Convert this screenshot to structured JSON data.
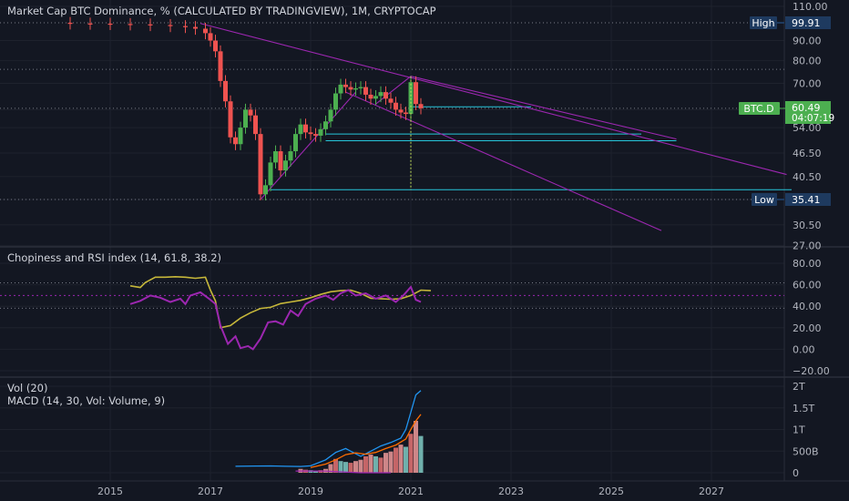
{
  "chart_title": "Market Cap BTC Dominance, % (CALCULATED BY TRADINGVIEW), 1M, CRYPTOCAP",
  "colors": {
    "background": "#131722",
    "up": "#26a69a",
    "up_green": "#4caf50",
    "down": "#ef5350",
    "trendline": "#9c27b0",
    "level": "#26c6da",
    "rsi": "#9c27b0",
    "chop": "#c6b73a",
    "macd": "#2196f3",
    "signal": "#ff6d00"
  },
  "price_panel": {
    "y_ticks": [
      "110.00",
      "90.00",
      "80.00",
      "70.00",
      "60.00",
      "54.00",
      "46.50",
      "40.50",
      "35.41",
      "30.50",
      "27.00"
    ],
    "high_label": "High",
    "high_value": "99.91",
    "low_label": "Low",
    "low_value": "35.41",
    "symbol_label": "BTC.D",
    "last_value": "60.49",
    "countdown": "04:07:19"
  },
  "chop_panel": {
    "title": "Chopiness and RSI index (14, 61.8, 38.2)",
    "y_ticks": [
      "80.00",
      "60.00",
      "40.00",
      "20.00",
      "0.00",
      "−20.00"
    ]
  },
  "vol_panel": {
    "title_vol": "Vol (20)",
    "title_macd": "MACD (14, 30, Vol: Volume, 9)",
    "y_ticks": [
      "2T",
      "1.5T",
      "1T",
      "500B",
      "0"
    ]
  },
  "x_ticks": [
    "2015",
    "2017",
    "2019",
    "2021",
    "2023",
    "2025",
    "2027"
  ],
  "chart_data": [
    {
      "type": "candlestick",
      "title": "Market Cap BTC Dominance, % (CALCULATED BY TRADINGVIEW), 1M, CRYPTOCAP",
      "x_range": [
        2013.9,
        2028.6
      ],
      "ylim": [
        26,
        111
      ],
      "close": [
        [
          2014.2,
          99.5
        ],
        [
          2014.6,
          99.4
        ],
        [
          2015.0,
          99.2
        ],
        [
          2015.4,
          99.0
        ],
        [
          2015.8,
          98.6
        ],
        [
          2016.2,
          98.0
        ],
        [
          2016.5,
          97.5
        ],
        [
          2016.7,
          96.5
        ],
        [
          2016.9,
          94.0
        ],
        [
          2017.0,
          90.0
        ],
        [
          2017.1,
          84.5
        ],
        [
          2017.2,
          71.0
        ],
        [
          2017.3,
          63.0
        ],
        [
          2017.4,
          51.0
        ],
        [
          2017.5,
          49.0
        ],
        [
          2017.6,
          54.0
        ],
        [
          2017.7,
          60.0
        ],
        [
          2017.8,
          58.0
        ],
        [
          2017.9,
          52.0
        ],
        [
          2018.0,
          36.5
        ],
        [
          2018.1,
          38.5
        ],
        [
          2018.2,
          44.0
        ],
        [
          2018.3,
          47.0
        ],
        [
          2018.4,
          42.0
        ],
        [
          2018.5,
          44.5
        ],
        [
          2018.6,
          47.0
        ],
        [
          2018.7,
          52.0
        ],
        [
          2018.8,
          55.0
        ],
        [
          2018.9,
          52.5
        ],
        [
          2019.0,
          52.0
        ],
        [
          2019.1,
          51.5
        ],
        [
          2019.2,
          53.5
        ],
        [
          2019.3,
          56.0
        ],
        [
          2019.4,
          60.0
        ],
        [
          2019.5,
          66.0
        ],
        [
          2019.6,
          69.5
        ],
        [
          2019.7,
          68.5
        ],
        [
          2019.8,
          67.5
        ],
        [
          2019.9,
          68.0
        ],
        [
          2020.0,
          68.5
        ],
        [
          2020.1,
          65.5
        ],
        [
          2020.2,
          64.0
        ],
        [
          2020.3,
          65.0
        ],
        [
          2020.4,
          66.5
        ],
        [
          2020.5,
          64.0
        ],
        [
          2020.6,
          62.5
        ],
        [
          2020.7,
          60.0
        ],
        [
          2020.8,
          59.0
        ],
        [
          2020.9,
          58.5
        ],
        [
          2021.0,
          70.5
        ],
        [
          2021.1,
          62.0
        ],
        [
          2021.2,
          60.5
        ]
      ],
      "high": 99.91,
      "low": 35.41,
      "last": 60.49,
      "trendlines": [
        {
          "from": [
            2016.8,
            99.5
          ],
          "to": [
            2028.5,
            41.0
          ]
        },
        {
          "from": [
            2018.0,
            35.41
          ],
          "to": [
            2019.9,
            66.5
          ]
        },
        {
          "from": [
            2019.7,
            66.5
          ],
          "to": [
            2026.0,
            29.5
          ]
        },
        {
          "from": [
            2020.3,
            62.0
          ],
          "to": [
            2021.0,
            73.0
          ]
        },
        {
          "from": [
            2021.0,
            73.0
          ],
          "to": [
            2026.3,
            50.5
          ]
        }
      ],
      "horizontal_levels": [
        {
          "y": 61.0,
          "from": 2021.0,
          "to": 2023.4
        },
        {
          "y": 52.0,
          "from": 2019.3,
          "to": 2025.6
        },
        {
          "y": 50.0,
          "from": 2019.3,
          "to": 2026.3
        },
        {
          "y": 37.5,
          "from": 2018.2,
          "to": 2028.6
        }
      ]
    },
    {
      "type": "line",
      "title": "Chopiness and RSI index (14, 61.8, 38.2)",
      "ylim": [
        -22,
        88
      ],
      "levels": [
        61.8,
        38.2
      ],
      "midline": 50,
      "series": [
        {
          "values": [
            [
              2015.4,
              59.0
            ],
            [
              2015.6,
              57.5
            ],
            [
              2015.7,
              62.0
            ],
            [
              2015.9,
              67.0
            ],
            [
              2016.1,
              67.0
            ],
            [
              2016.3,
              67.5
            ],
            [
              2016.5,
              67.0
            ],
            [
              2016.7,
              66.0
            ],
            [
              2016.9,
              67.0
            ],
            [
              2017.0,
              55.0
            ],
            [
              2017.1,
              45.0
            ],
            [
              2017.2,
              20.0
            ],
            [
              2017.4,
              22.0
            ],
            [
              2017.6,
              29.0
            ],
            [
              2017.8,
              34.0
            ],
            [
              2018.0,
              38.0
            ],
            [
              2018.2,
              39.0
            ],
            [
              2018.4,
              42.5
            ],
            [
              2018.6,
              44.0
            ],
            [
              2018.8,
              45.5
            ],
            [
              2019.0,
              48.0
            ],
            [
              2019.2,
              51.0
            ],
            [
              2019.4,
              53.5
            ],
            [
              2019.6,
              54.5
            ],
            [
              2019.8,
              55.0
            ],
            [
              2020.0,
              52.0
            ],
            [
              2020.2,
              47.5
            ],
            [
              2020.4,
              47.0
            ],
            [
              2020.6,
              46.5
            ],
            [
              2020.8,
              47.0
            ],
            [
              2021.0,
              50.0
            ],
            [
              2021.2,
              55.0
            ],
            [
              2021.4,
              54.5
            ]
          ]
        },
        {
          "values": [
            [
              2015.4,
              42.0
            ],
            [
              2015.6,
              45.0
            ],
            [
              2015.8,
              50.0
            ],
            [
              2016.0,
              48.0
            ],
            [
              2016.2,
              44.0
            ],
            [
              2016.4,
              47.0
            ],
            [
              2016.5,
              42.0
            ],
            [
              2016.6,
              50.0
            ],
            [
              2016.8,
              53.0
            ],
            [
              2017.0,
              46.0
            ],
            [
              2017.1,
              42.0
            ],
            [
              2017.2,
              22.0
            ],
            [
              2017.35,
              5.0
            ],
            [
              2017.5,
              12.0
            ],
            [
              2017.6,
              1.0
            ],
            [
              2017.75,
              3.0
            ],
            [
              2017.85,
              0.0
            ],
            [
              2018.0,
              10.0
            ],
            [
              2018.15,
              25.0
            ],
            [
              2018.3,
              26.0
            ],
            [
              2018.45,
              23.0
            ],
            [
              2018.6,
              36.0
            ],
            [
              2018.75,
              31.0
            ],
            [
              2018.9,
              42.0
            ],
            [
              2019.1,
              47.0
            ],
            [
              2019.3,
              50.0
            ],
            [
              2019.45,
              46.0
            ],
            [
              2019.6,
              52.0
            ],
            [
              2019.75,
              55.0
            ],
            [
              2019.9,
              50.0
            ],
            [
              2020.1,
              52.0
            ],
            [
              2020.3,
              47.0
            ],
            [
              2020.5,
              50.0
            ],
            [
              2020.7,
              44.0
            ],
            [
              2020.85,
              50.0
            ],
            [
              2021.0,
              58.0
            ],
            [
              2021.1,
              46.0
            ],
            [
              2021.2,
              44.0
            ]
          ]
        }
      ]
    },
    {
      "type": "bar",
      "title": "Vol (20)",
      "ylim": [
        -150000000000,
        1950000000000
      ],
      "bars": [
        [
          2018.8,
          90000000000
        ],
        [
          2018.9,
          70000000000
        ],
        [
          2019.0,
          60000000000
        ],
        [
          2019.1,
          50000000000
        ],
        [
          2019.2,
          60000000000
        ],
        [
          2019.3,
          90000000000
        ],
        [
          2019.4,
          200000000000
        ],
        [
          2019.5,
          320000000000
        ],
        [
          2019.6,
          270000000000
        ],
        [
          2019.7,
          250000000000
        ],
        [
          2019.8,
          230000000000
        ],
        [
          2019.9,
          270000000000
        ],
        [
          2020.0,
          300000000000
        ],
        [
          2020.1,
          380000000000
        ],
        [
          2020.2,
          420000000000
        ],
        [
          2020.3,
          380000000000
        ],
        [
          2020.4,
          350000000000
        ],
        [
          2020.5,
          460000000000
        ],
        [
          2020.6,
          490000000000
        ],
        [
          2020.7,
          580000000000
        ],
        [
          2020.8,
          650000000000
        ],
        [
          2020.9,
          600000000000
        ],
        [
          2021.0,
          900000000000
        ],
        [
          2021.1,
          1200000000000
        ],
        [
          2021.2,
          850000000000
        ]
      ],
      "series": [
        {
          "type": "line",
          "values": [
            [
              2017.5,
              150000000000
            ],
            [
              2017.9,
              155000000000
            ],
            [
              2018.2,
              158000000000
            ],
            [
              2018.5,
              150000000000
            ],
            [
              2018.8,
              145000000000
            ],
            [
              2019.0,
              160000000000
            ],
            [
              2019.3,
              300000000000
            ],
            [
              2019.5,
              470000000000
            ],
            [
              2019.7,
              560000000000
            ],
            [
              2019.8,
              500000000000
            ],
            [
              2020.0,
              380000000000
            ],
            [
              2020.2,
              500000000000
            ],
            [
              2020.4,
              620000000000
            ],
            [
              2020.6,
              700000000000
            ],
            [
              2020.8,
              800000000000
            ],
            [
              2020.9,
              1000000000000
            ],
            [
              2021.0,
              1400000000000
            ],
            [
              2021.1,
              1800000000000
            ],
            [
              2021.2,
              1900000000000
            ]
          ]
        },
        {
          "type": "line",
          "values": [
            [
              2019.0,
              120000000000
            ],
            [
              2019.3,
              200000000000
            ],
            [
              2019.5,
              300000000000
            ],
            [
              2019.7,
              420000000000
            ],
            [
              2019.9,
              460000000000
            ],
            [
              2020.1,
              430000000000
            ],
            [
              2020.3,
              470000000000
            ],
            [
              2020.5,
              560000000000
            ],
            [
              2020.7,
              640000000000
            ],
            [
              2020.9,
              780000000000
            ],
            [
              2021.0,
              1000000000000
            ],
            [
              2021.1,
              1200000000000
            ],
            [
              2021.2,
              1350000000000
            ]
          ]
        },
        {
          "type": "line",
          "values": [
            [
              2018.7,
              40000000000
            ],
            [
              2019.0,
              40000000000
            ],
            [
              2019.3,
              38000000000
            ],
            [
              2019.6,
              20000000000
            ],
            [
              2019.8,
              10000000000
            ],
            [
              2020.0,
              0
            ],
            [
              2020.3,
              0
            ],
            [
              2020.6,
              0
            ]
          ]
        }
      ]
    }
  ]
}
